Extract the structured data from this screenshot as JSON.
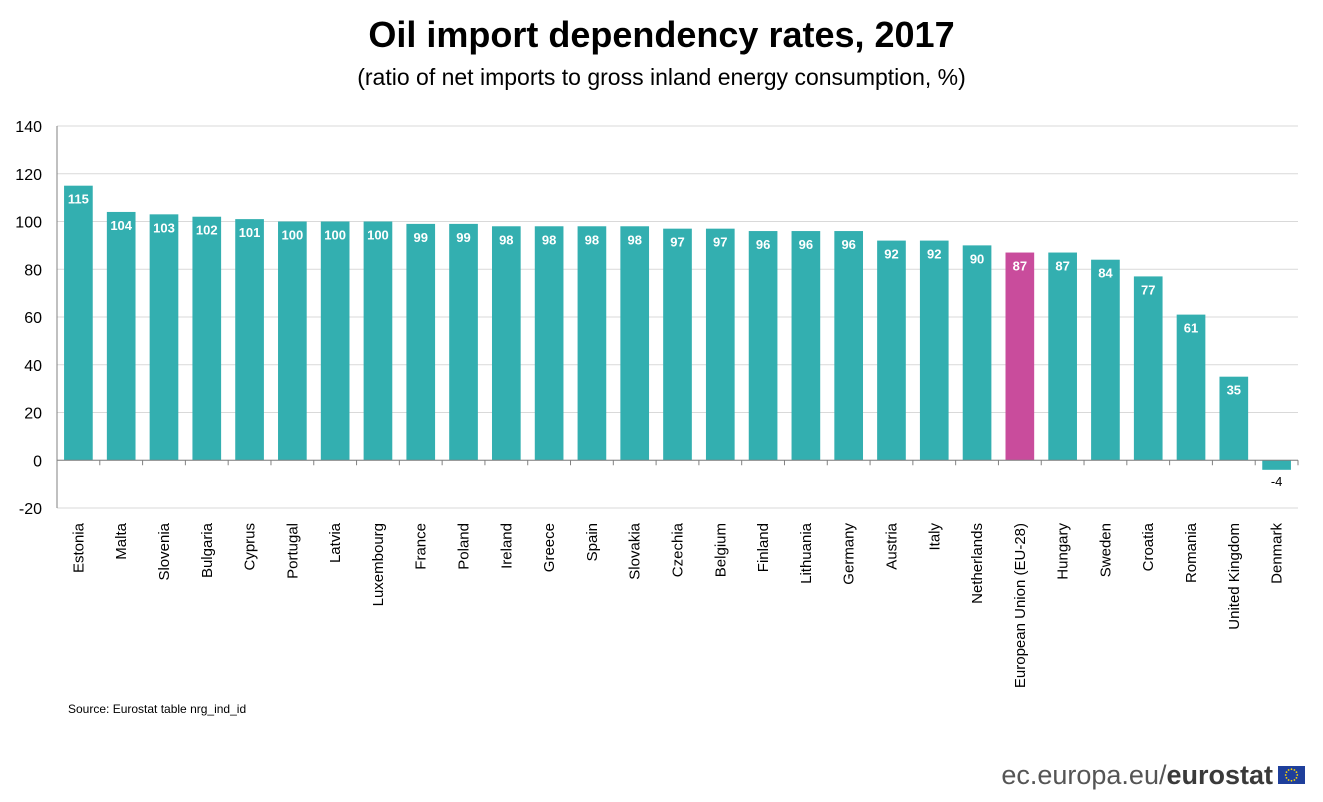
{
  "title": "Oil import dependency rates, 2017",
  "subtitle": "(ratio of net imports to gross inland energy consumption, %)",
  "source": "Source: Eurostat table  nrg_ind_id",
  "footer": {
    "prefix": "ec.europa.eu/",
    "brand": "eurostat"
  },
  "colors": {
    "bar": "#33afb0",
    "highlight": "#c94c9c",
    "grid": "#d9d9d9",
    "axis": "#808080"
  },
  "chart_data": {
    "type": "bar",
    "title": "Oil import dependency rates, 2017",
    "subtitle": "(ratio of net imports to gross inland energy consumption, %)",
    "xlabel": "",
    "ylabel": "",
    "ylim": [
      -20,
      140
    ],
    "yticks": [
      -20,
      0,
      20,
      40,
      60,
      80,
      100,
      120,
      140
    ],
    "grid": true,
    "highlight": "European Union (EU-28)",
    "categories": [
      "Estonia",
      "Malta",
      "Slovenia",
      "Bulgaria",
      "Cyprus",
      "Portugal",
      "Latvia",
      "Luxembourg",
      "France",
      "Poland",
      "Ireland",
      "Greece",
      "Spain",
      "Slovakia",
      "Czechia",
      "Belgium",
      "Finland",
      "Lithuania",
      "Germany",
      "Austria",
      "Italy",
      "Netherlands",
      "European Union (EU-28)",
      "Hungary",
      "Sweden",
      "Croatia",
      "Romania",
      "United Kingdom",
      "Denmark"
    ],
    "values": [
      115,
      104,
      103,
      102,
      101,
      100,
      100,
      100,
      99,
      99,
      98,
      98,
      98,
      98,
      97,
      97,
      96,
      96,
      96,
      92,
      92,
      90,
      87,
      87,
      84,
      77,
      61,
      35,
      -4
    ]
  }
}
